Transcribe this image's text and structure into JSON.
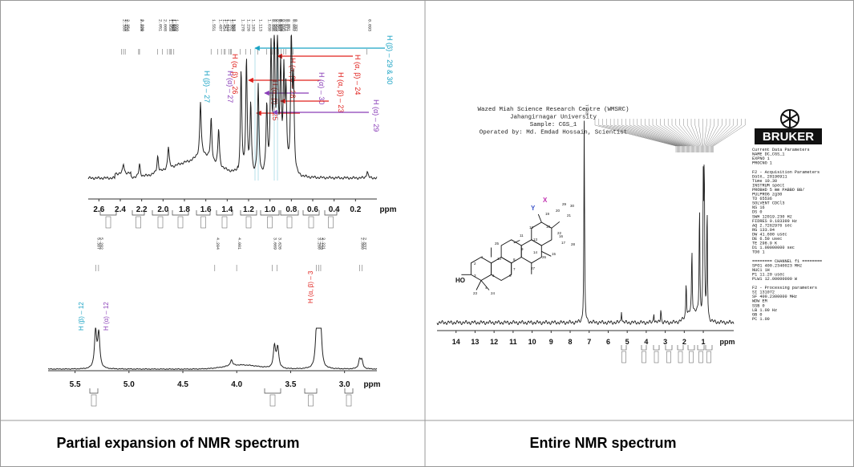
{
  "captions": {
    "left": "Partial expansion of NMR spectrum",
    "right": "Entire NMR spectrum"
  },
  "colors": {
    "red": "#e0201c",
    "cyan": "#1aa3c4",
    "purple": "#8a3fb8",
    "trace": "#222222",
    "border": "#999999"
  },
  "chart_data": [
    {
      "type": "line",
      "title": "",
      "xlabel": "ppm",
      "ylabel": "",
      "xlim": [
        2.7,
        0.0
      ],
      "x_ticks": [
        "2.6",
        "2.4",
        "2.2",
        "2.0",
        "1.8",
        "1.6",
        "1.4",
        "1.2",
        "1.0",
        "0.8",
        "0.6",
        "0.4",
        "0.2",
        "ppm"
      ],
      "peak_shifts_top": [
        "2.388",
        "2.370",
        "2.354",
        "2.228",
        "2.220",
        "2.051",
        "2.008",
        "1.958",
        "1.936",
        "1.927",
        "1.925",
        "1.899",
        "1.487",
        "1.454",
        "1.427",
        "1.369",
        "1.551",
        "1.418",
        "1.382",
        "1.362",
        "1.278",
        "1.226",
        "1.183",
        "1.113",
        "1.030",
        "0.996",
        "0.980",
        "0.959",
        "0.937",
        "0.928",
        "0.920",
        "0.895",
        "0.871",
        "0.851",
        "0.802",
        "0.782",
        "0.093"
      ],
      "peaks": [
        {
          "x": 2.37,
          "y": 0.07
        },
        {
          "x": 2.22,
          "y": 0.09
        },
        {
          "x": 2.05,
          "y": 0.12
        },
        {
          "x": 1.95,
          "y": 0.16
        },
        {
          "x": 1.65,
          "y": 0.38
        },
        {
          "x": 1.55,
          "y": 0.3
        },
        {
          "x": 1.48,
          "y": 0.27
        },
        {
          "x": 1.27,
          "y": 0.74
        },
        {
          "x": 1.22,
          "y": 0.82
        },
        {
          "x": 1.18,
          "y": 0.5
        },
        {
          "x": 1.11,
          "y": 0.64
        },
        {
          "x": 1.03,
          "y": 0.48
        },
        {
          "x": 0.99,
          "y": 0.88
        },
        {
          "x": 0.96,
          "y": 0.97
        },
        {
          "x": 0.93,
          "y": 0.95
        },
        {
          "x": 0.9,
          "y": 0.72
        },
        {
          "x": 0.87,
          "y": 0.68
        },
        {
          "x": 0.85,
          "y": 0.55
        },
        {
          "x": 0.8,
          "y": 0.98
        },
        {
          "x": 0.78,
          "y": 0.62
        },
        {
          "x": 0.09,
          "y": 0.05
        }
      ],
      "annotations": [
        {
          "text": "H (β) – 29 & 30",
          "color": "cyan"
        },
        {
          "text": "H (α, β) – 24",
          "color": "red"
        },
        {
          "text": "H (α, β) – 26",
          "color": "red"
        },
        {
          "text": "H (α, β) – 28",
          "color": "red"
        },
        {
          "text": "H (α) – 30",
          "color": "purple"
        },
        {
          "text": "H (α, β) – 23",
          "color": "red"
        },
        {
          "text": "H (α, β) – 25",
          "color": "red"
        },
        {
          "text": "H (α) – 29",
          "color": "purple"
        },
        {
          "text": "H (β) – 27",
          "color": "cyan"
        },
        {
          "text": "H (α) – 27",
          "color": "purple"
        }
      ]
    },
    {
      "type": "line",
      "title": "",
      "xlabel": "ppm",
      "ylabel": "",
      "xlim": [
        5.75,
        2.7
      ],
      "x_ticks": [
        "5.5",
        "5.0",
        "4.5",
        "4.0",
        "3.5",
        "3.0",
        "ppm"
      ],
      "peak_shifts_top": [
        "5.307",
        "5.282",
        "4.204",
        "4.001",
        "3.669",
        "3.626",
        "3.260",
        "3.239",
        "3.221",
        "2.860",
        "2.837"
      ],
      "peaks": [
        {
          "x": 5.31,
          "y": 0.92
        },
        {
          "x": 5.28,
          "y": 0.85
        },
        {
          "x": 4.05,
          "y": 0.15
        },
        {
          "x": 3.65,
          "y": 0.55
        },
        {
          "x": 3.62,
          "y": 0.52
        },
        {
          "x": 3.26,
          "y": 0.88
        },
        {
          "x": 3.24,
          "y": 0.95
        },
        {
          "x": 3.22,
          "y": 0.82
        },
        {
          "x": 2.86,
          "y": 0.22
        },
        {
          "x": 2.84,
          "y": 0.2
        }
      ],
      "annotations": [
        {
          "text": "H (β) – 12",
          "color": "cyan"
        },
        {
          "text": "H (α) – 12",
          "color": "purple"
        },
        {
          "text": "H (α, β) – 3",
          "color": "red"
        }
      ]
    },
    {
      "type": "line",
      "title": "",
      "xlabel": "ppm",
      "ylabel": "",
      "xlim": [
        15.0,
        -0.6
      ],
      "x_ticks": [
        "14",
        "13",
        "12",
        "11",
        "10",
        "9",
        "8",
        "7",
        "6",
        "5",
        "4",
        "3",
        "2",
        "1",
        "ppm"
      ],
      "header": [
        "Wazed Miah Science Research Centre (WMSRC)",
        "Jahangirnagar University",
        "Sample: CGS_1",
        "Operated by: Md. Emdad Hossain, Scientist"
      ],
      "peak_shift_solvent": "7.265",
      "peaks": [
        {
          "x": 7.26,
          "y": 0.98
        },
        {
          "x": 5.3,
          "y": 0.06
        },
        {
          "x": 3.6,
          "y": 0.05
        },
        {
          "x": 3.23,
          "y": 0.07
        },
        {
          "x": 1.9,
          "y": 0.18
        },
        {
          "x": 1.6,
          "y": 0.32
        },
        {
          "x": 1.2,
          "y": 0.55
        },
        {
          "x": 1.0,
          "y": 0.62
        },
        {
          "x": 0.95,
          "y": 0.75
        },
        {
          "x": 0.8,
          "y": 0.58
        }
      ]
    }
  ],
  "bruker": {
    "logo": "BRUKER",
    "params": [
      "Current Data Parameters",
      "NAME        DC_CGS_1",
      "EXPNO              1",
      "PROCNO             1",
      "",
      "F2 - Acquisition Parameters",
      "Date_       20190911",
      "Time           10.30",
      "INSTRUM        spect",
      "PROBHD  5 mm PABBO BB/",
      "PULPROG          zg30",
      "TD             65536",
      "SOLVENT        CDCl3",
      "NS                16",
      "DS                 0",
      "SWH       12019.230 Hz",
      "FIDRES     0.183399 Hz",
      "AQ        2.7262976 sec",
      "RG            133.94",
      "DW            41.600 usec",
      "DE              6.50 usec",
      "TE             298.9 K",
      "D1        1.00000000 sec",
      "TD0                1",
      "",
      "======== CHANNEL f1 ========",
      "SFO1      400.2340023 MHz",
      "NUC1               1H",
      "P1               11.20 usec",
      "PLW1       12.00000000 W",
      "",
      "F2 - Processing parameters",
      "SI            131072",
      "SF        400.2300000 MHz",
      "WDW               EM",
      "SSB     0",
      "LB               1.00 Hz",
      "GB      0",
      "PC               1.00"
    ]
  },
  "structure": {
    "labels": [
      "X",
      "Y",
      "HO",
      "30",
      "29",
      "20",
      "21",
      "19",
      "18",
      "22",
      "12",
      "11",
      "13",
      "17",
      "28",
      "25",
      "26",
      "9",
      "14",
      "10",
      "8",
      "1",
      "2",
      "3",
      "4",
      "5",
      "6",
      "7",
      "15",
      "16",
      "27",
      "23",
      "24"
    ]
  }
}
